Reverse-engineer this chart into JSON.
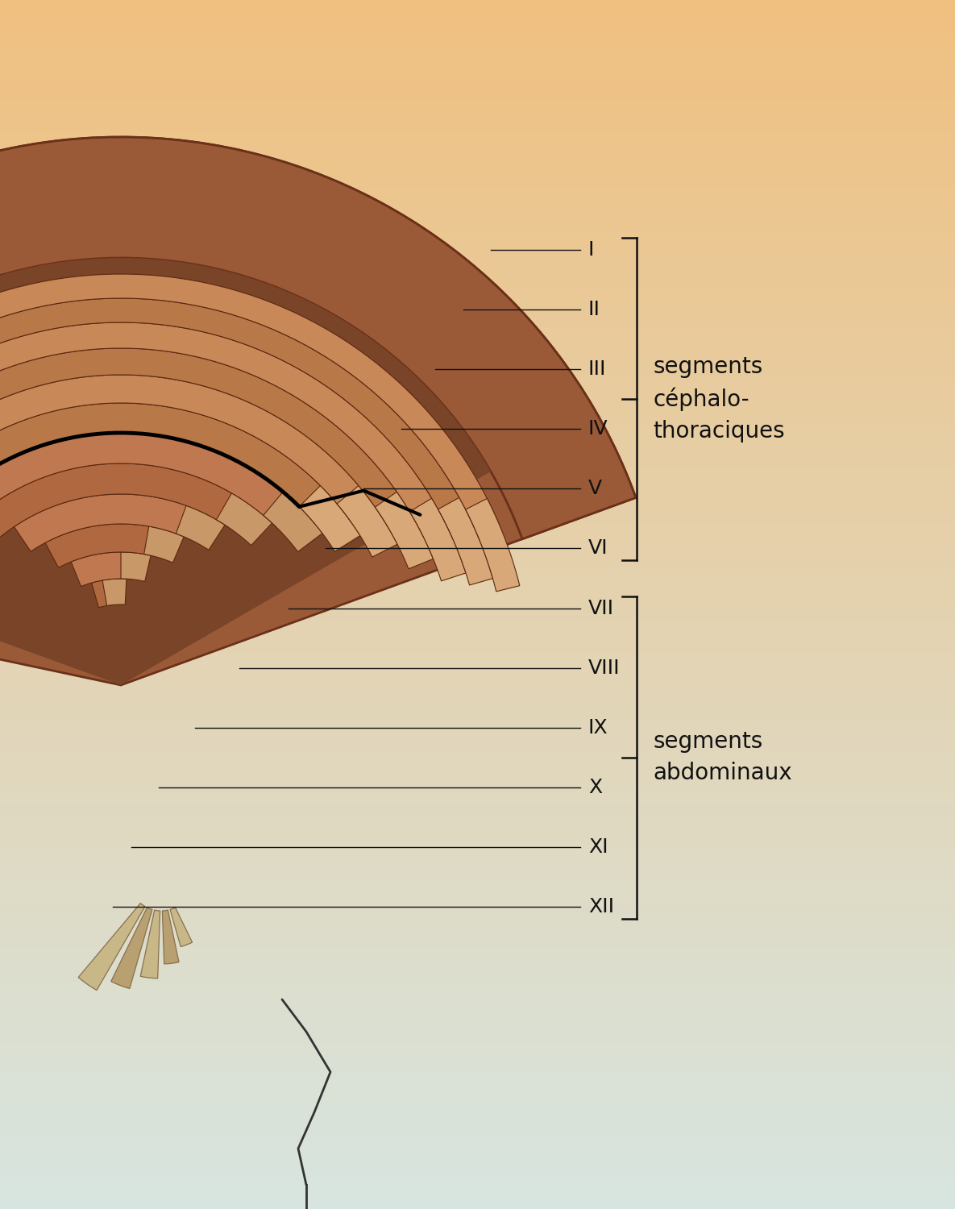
{
  "bg_top_color": "#f0c080",
  "bg_bottom_color": "#d8e5e0",
  "segment_labels": [
    "I",
    "II",
    "III",
    "IV",
    "V",
    "VI",
    "VII",
    "VIII",
    "IX",
    "X",
    "XI",
    "XII"
  ],
  "label_cephalothoraciques": "segments\ncéphalo-\nthoraciques",
  "label_abdominaux": "segments\nabdominaux",
  "outer_shell_color_dark": "#8c5038",
  "outer_shell_color_mid": "#a86848",
  "segment_edge": "#5a2810",
  "label_color": "#111111",
  "line_color": "#111111",
  "bracket_color": "#111111",
  "black_groove_color": "#111111",
  "telson_color": "#c8b888",
  "telson_edge": "#887050",
  "tail_color": "#333333"
}
